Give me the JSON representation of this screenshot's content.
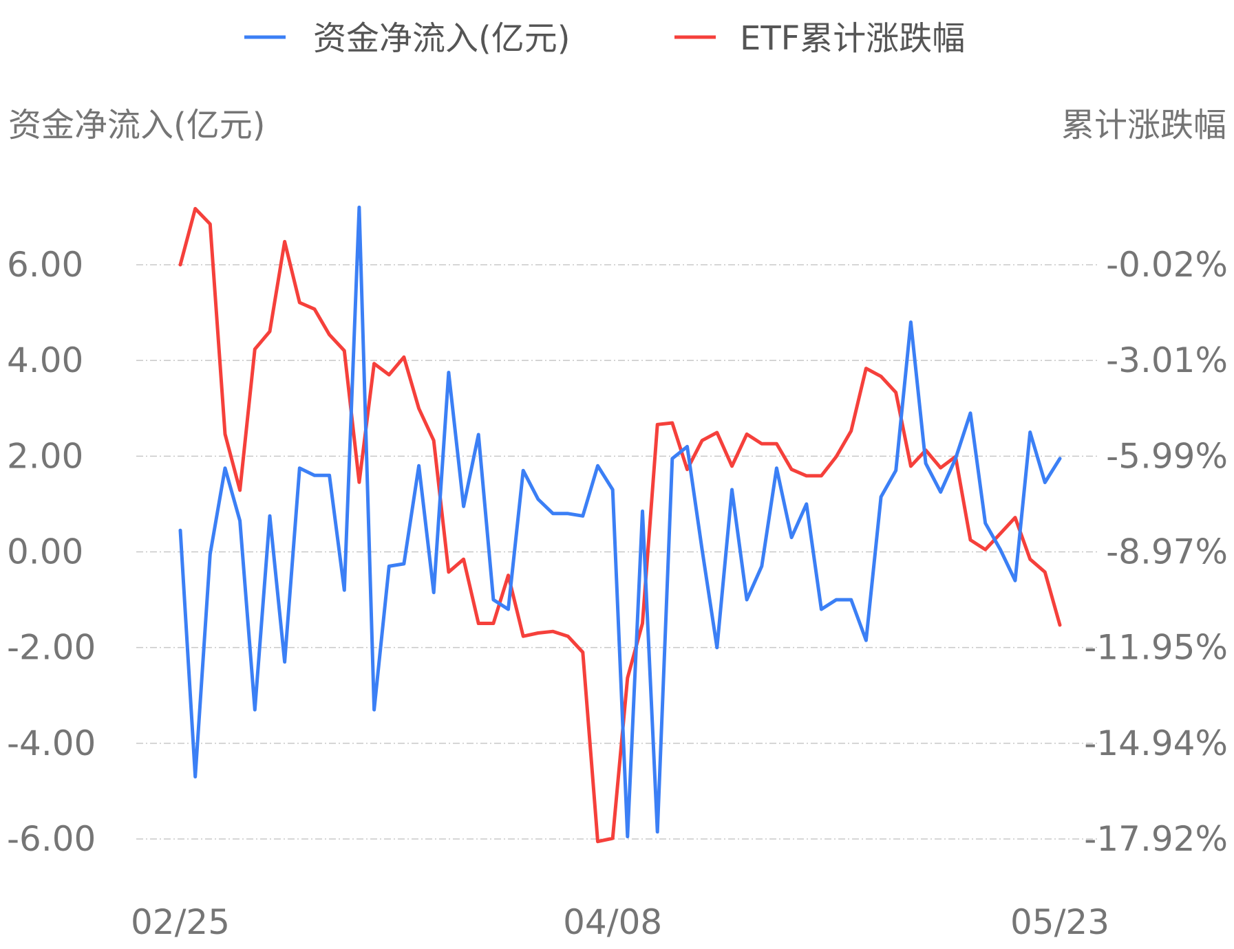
{
  "chart_data": {
    "type": "line",
    "legend": {
      "position": "top-center",
      "items": [
        {
          "label": "资金净流入(亿元)",
          "color": "#3b7ff5"
        },
        {
          "label": "ETF累计涨跌幅",
          "color": "#f5403b"
        }
      ]
    },
    "left_axis": {
      "title": "资金净流入(亿元)",
      "ticks": [
        "6.00",
        "4.00",
        "2.00",
        "0.00",
        "-2.00",
        "-4.00",
        "-6.00"
      ],
      "range": [
        -6,
        6
      ]
    },
    "right_axis": {
      "title": "累计涨跌幅",
      "ticks": [
        "-0.02%",
        "-3.01%",
        "-5.99%",
        "-8.97%",
        "-11.95%",
        "-14.94%",
        "-17.92%"
      ],
      "range": [
        -17.92,
        -0.02
      ]
    },
    "x_axis": {
      "tick_labels": [
        "02/25",
        "04/08",
        "05/23"
      ],
      "tick_indices": [
        0,
        29,
        59
      ]
    },
    "grid": true,
    "series": [
      {
        "name": "资金净流入(亿元)",
        "color": "#3b7ff5",
        "axis": "left",
        "values": [
          0.45,
          -4.7,
          -0.05,
          1.75,
          0.65,
          -3.3,
          0.75,
          -2.3,
          1.75,
          1.6,
          1.6,
          -0.8,
          7.2,
          -3.3,
          -0.3,
          -0.25,
          1.8,
          -0.85,
          3.75,
          0.95,
          2.45,
          -1.0,
          -1.2,
          1.7,
          1.1,
          0.8,
          0.8,
          0.75,
          1.8,
          1.3,
          -5.95,
          0.85,
          -5.85,
          1.95,
          2.2,
          0.05,
          -2.0,
          1.3,
          -1.0,
          -0.3,
          1.75,
          0.3,
          1.0,
          -1.2,
          -1.0,
          -1.0,
          -1.85,
          1.15,
          1.7,
          4.8,
          1.85,
          1.25,
          1.95,
          2.9,
          0.6,
          0.05,
          -0.6,
          2.5,
          1.45,
          1.95
        ]
      },
      {
        "name": "ETF累计涨跌幅",
        "color": "#f5403b",
        "axis": "right",
        "values": [
          -0.02,
          1.73,
          1.25,
          -5.3,
          -7.05,
          -2.65,
          -2.1,
          0.7,
          -1.2,
          -1.4,
          -2.2,
          -2.7,
          -6.8,
          -3.1,
          -3.45,
          -2.9,
          -4.5,
          -5.5,
          -9.6,
          -9.2,
          -11.2,
          -11.2,
          -9.7,
          -11.6,
          -11.5,
          -11.45,
          -11.6,
          -12.1,
          -18.0,
          -17.9,
          -12.9,
          -11.2,
          -5.0,
          -4.95,
          -6.4,
          -5.5,
          -5.25,
          -6.3,
          -5.3,
          -5.6,
          -5.6,
          -6.4,
          -6.6,
          -6.6,
          -6.0,
          -5.2,
          -3.25,
          -3.5,
          -4.0,
          -6.3,
          -5.8,
          -6.35,
          -6.0,
          -8.6,
          -8.9,
          -8.4,
          -7.9,
          -9.2,
          -9.6,
          -11.25
        ]
      }
    ]
  }
}
